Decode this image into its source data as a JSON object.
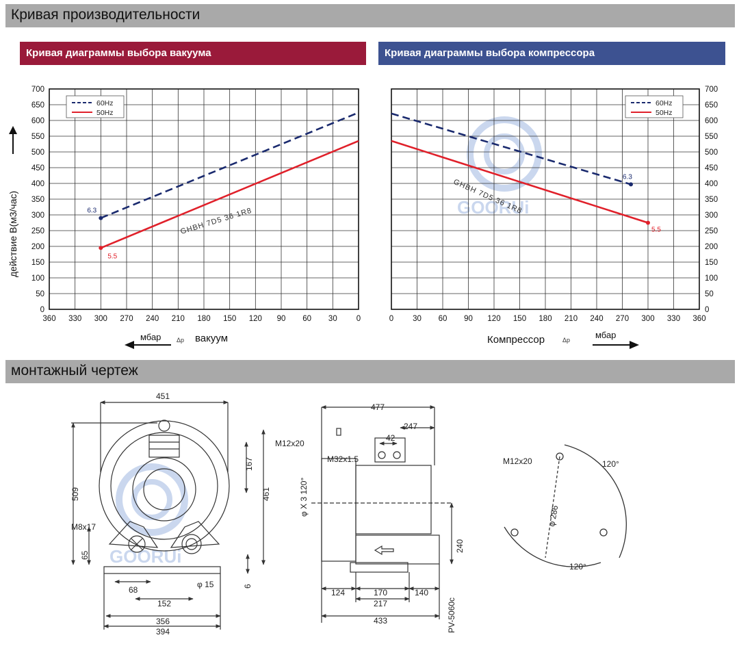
{
  "section1": {
    "title": "Кривая производительности"
  },
  "section2": {
    "title": "монтажный чертеж"
  },
  "chart_data": [
    {
      "type": "line",
      "title": "Кривая диаграммы выбора вакуума",
      "title_color": "#9a1a3a",
      "ylabel": "действие  B(м3/час)",
      "xlabel_unit": "мбар",
      "xlabel_symbol": "Δp",
      "xlabel_text": "вакуум",
      "x_ticks": [
        360,
        330,
        300,
        270,
        240,
        210,
        180,
        150,
        120,
        90,
        60,
        30,
        0
      ],
      "x_reversed": true,
      "xlim": [
        360,
        0
      ],
      "y_ticks": [
        0,
        50,
        100,
        150,
        200,
        250,
        300,
        350,
        400,
        450,
        500,
        550,
        600,
        650,
        700
      ],
      "ylim": [
        0,
        700
      ],
      "grid": true,
      "legend_position": "top-left",
      "model_label": "GHBH 7D5 36 1R8",
      "series": [
        {
          "name": "60Hz",
          "color": "#1a2a6e",
          "dash": true,
          "x": [
            300,
            0
          ],
          "y": [
            290,
            625
          ],
          "end_label": "6.3"
        },
        {
          "name": "50Hz",
          "color": "#e0202a",
          "dash": false,
          "x": [
            300,
            0
          ],
          "y": [
            195,
            535
          ],
          "end_label": "5.5"
        }
      ]
    },
    {
      "type": "line",
      "title": "Кривая диаграммы выбора компрессора",
      "title_color": "#3d5291",
      "xlabel_unit": "мбар",
      "xlabel_symbol": "Δp",
      "xlabel_text": "Компрессор",
      "x_ticks": [
        0,
        30,
        60,
        90,
        120,
        150,
        180,
        210,
        240,
        270,
        300,
        330,
        360
      ],
      "x_reversed": false,
      "xlim": [
        0,
        360
      ],
      "y_ticks": [
        0,
        50,
        100,
        150,
        200,
        250,
        300,
        350,
        400,
        450,
        500,
        550,
        600,
        650,
        700
      ],
      "ylim": [
        0,
        700
      ],
      "grid": true,
      "legend_position": "top-right",
      "model_label": "GHBH 7D5 36 1R8",
      "watermark": "GOORUi",
      "series": [
        {
          "name": "60Hz",
          "color": "#1a2a6e",
          "dash": true,
          "x": [
            0,
            280
          ],
          "y": [
            622,
            397
          ],
          "end_label": "6.3"
        },
        {
          "name": "50Hz",
          "color": "#e0202a",
          "dash": false,
          "x": [
            0,
            300
          ],
          "y": [
            535,
            275
          ],
          "end_label": "5.5"
        }
      ]
    }
  ],
  "drawing": {
    "front": {
      "dims": [
        "451",
        "167",
        "509",
        "461",
        "M8x17",
        "65",
        "68",
        "152",
        "356",
        "394",
        "φ 15",
        "6"
      ]
    },
    "side": {
      "dims": [
        "477",
        "247",
        "42",
        "M12x20",
        "M32x1.5",
        "φ X 3 120°",
        "240",
        "124",
        "170",
        "140",
        "217",
        "433",
        "PV-5060c"
      ]
    },
    "flange": {
      "dims": [
        "M12x20",
        "120°",
        "φ 286",
        "120°"
      ]
    },
    "watermark": "GOORUi"
  }
}
